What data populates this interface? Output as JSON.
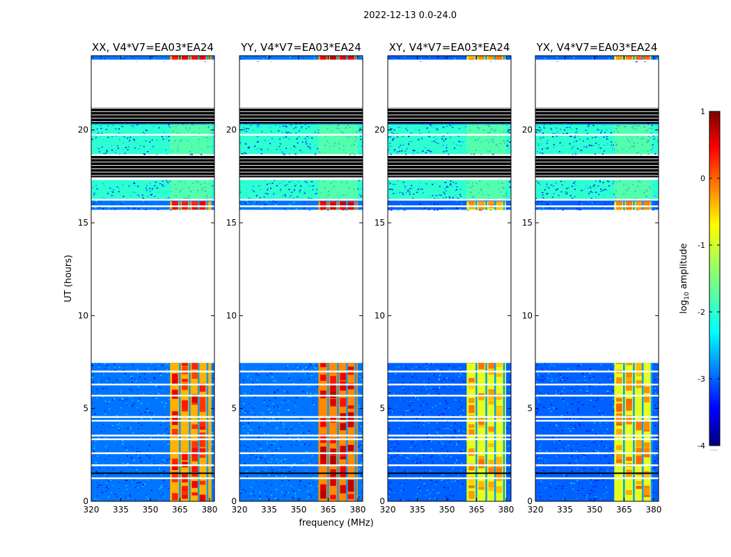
{
  "figure_title": "2022-12-13 0.0-24.0",
  "ylabel": "UT (hours)",
  "xlabel": "frequency (MHz)",
  "colorbar": {
    "label_main": "log",
    "label_sub": "10",
    "label_tail": " amplitude",
    "range": [
      -4,
      1
    ],
    "ticks": [
      1,
      0,
      -1,
      -2,
      -3,
      -4
    ],
    "colormap": "jet",
    "bottom_note": "......"
  },
  "chart_data": [
    {
      "type": "heatmap",
      "title": "XX, V4*V7=EA03*EA24",
      "xlim": [
        320,
        382.5
      ],
      "ylim": [
        0,
        24
      ],
      "xticks": [
        320,
        335,
        350,
        365,
        380
      ],
      "yticks": [
        0,
        5,
        10,
        15,
        20
      ],
      "background_log10_amplitude": -2.8,
      "rfi_band_mhz": [
        360,
        381
      ],
      "rfi_band_log10_amplitude": -0.5,
      "hot_channels_log10_amplitude": 0.3
    },
    {
      "type": "heatmap",
      "title": "YY, V4*V7=EA03*EA24",
      "xlim": [
        320,
        382.5
      ],
      "ylim": [
        0,
        24
      ],
      "xticks": [
        320,
        335,
        350,
        365,
        380
      ],
      "yticks": [
        0,
        5,
        10,
        15,
        20
      ],
      "background_log10_amplitude": -2.8,
      "rfi_band_mhz": [
        360,
        380
      ],
      "rfi_band_log10_amplitude": -0.3,
      "hot_channels_log10_amplitude": 0.5
    },
    {
      "type": "heatmap",
      "title": "XY, V4*V7=EA03*EA24",
      "xlim": [
        320,
        382.5
      ],
      "ylim": [
        0,
        24
      ],
      "xticks": [
        320,
        335,
        350,
        365,
        380
      ],
      "yticks": [
        0,
        5,
        10,
        15,
        20
      ],
      "background_log10_amplitude": -2.9,
      "rfi_band_mhz": [
        360,
        380
      ],
      "rfi_band_log10_amplitude": -1.0,
      "hot_channels_log10_amplitude": -0.4
    },
    {
      "type": "heatmap",
      "title": "YX, V4*V7=EA03*EA24",
      "xlim": [
        320,
        382.5
      ],
      "ylim": [
        0,
        24
      ],
      "xticks": [
        320,
        335,
        350,
        365,
        380
      ],
      "yticks": [
        0,
        5,
        10,
        15,
        20
      ],
      "background_log10_amplitude": -2.9,
      "rfi_band_mhz": [
        360,
        379
      ],
      "rfi_band_log10_amplitude": -1.0,
      "hot_channels_log10_amplitude": -0.3
    }
  ],
  "time_layout": {
    "data_segments_hours": [
      [
        0,
        7.45
      ],
      [
        15.7,
        17.3
      ],
      [
        18.7,
        21.1
      ],
      [
        23.7,
        24
      ]
    ],
    "quiet_segment_hours": [
      [
        16.2,
        17.3
      ],
      [
        18.7,
        20.3
      ]
    ],
    "blank_gaps_hours": [
      [
        7.45,
        15.7
      ],
      [
        21.2,
        23.7
      ]
    ],
    "flagged_black_hours": [
      [
        17.45,
        18.6
      ],
      [
        20.35,
        21.2
      ]
    ],
    "white_flag_lines_hours": [
      1.25,
      1.95,
      2.6,
      3.35,
      3.55,
      4.35,
      4.55,
      5.7,
      6.3,
      7.0,
      15.9,
      16.25,
      19.75,
      23.75
    ]
  }
}
